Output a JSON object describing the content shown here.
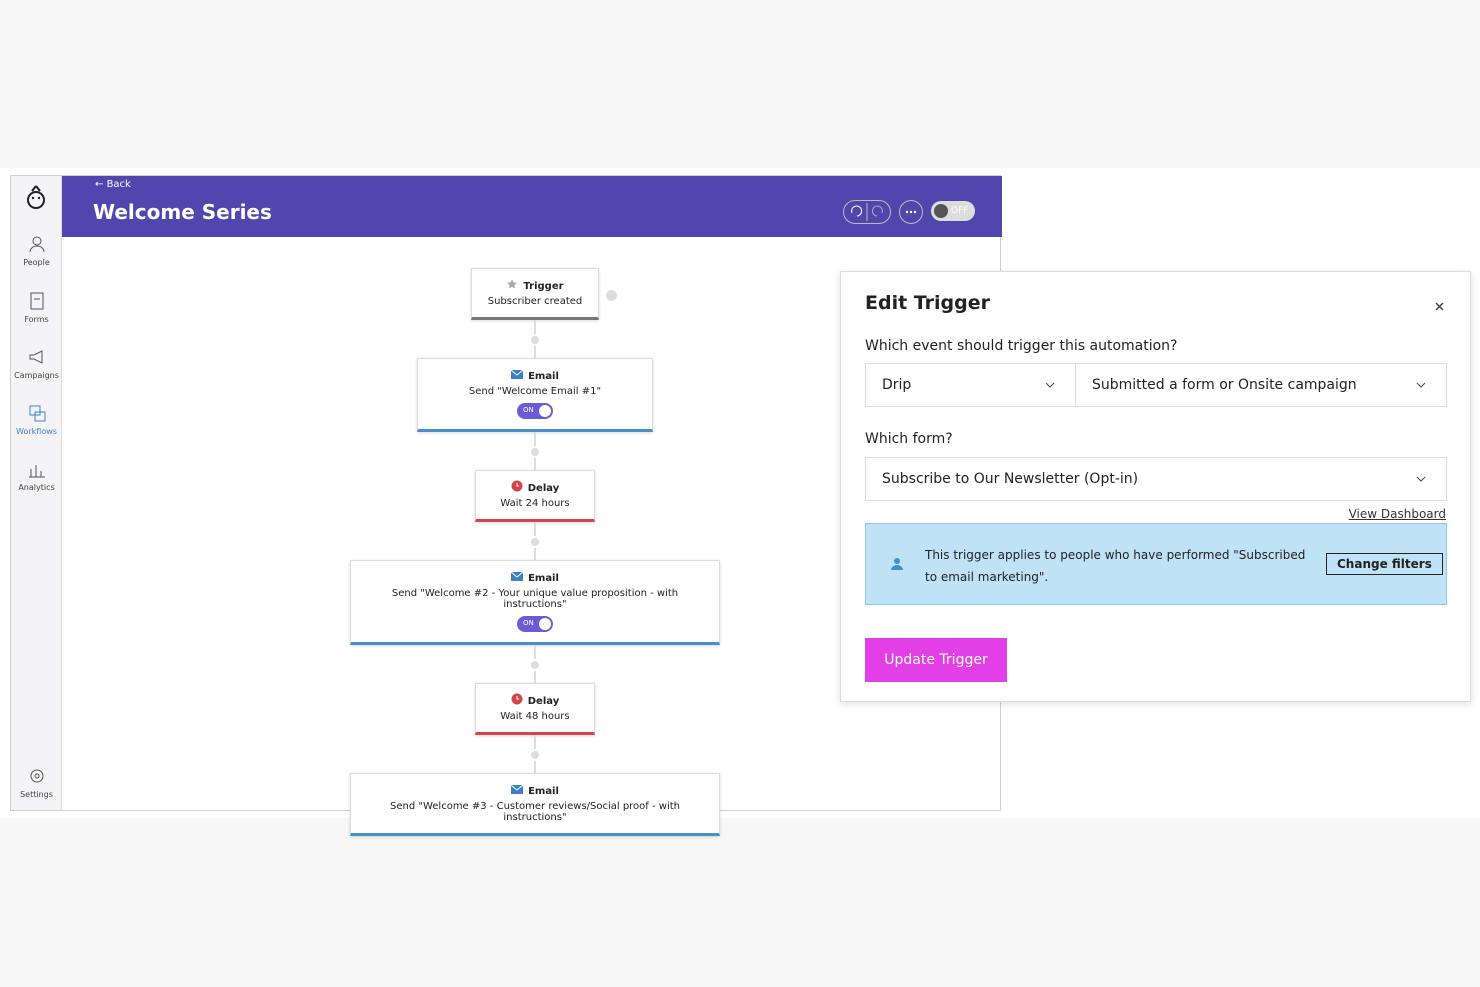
{
  "sidebar": {
    "items": [
      "People",
      "Forms",
      "Campaigns",
      "Workflows",
      "Analytics"
    ],
    "active": 3,
    "settings": "Settings"
  },
  "header": {
    "back": "Back",
    "title": "Welcome Series",
    "toggle": "OFF"
  },
  "workflow": {
    "nodes": [
      {
        "kind": "Trigger",
        "text": "Subscriber created"
      },
      {
        "kind": "Email",
        "text": "Send \"Welcome Email #1\"",
        "toggle": "ON"
      },
      {
        "kind": "Delay",
        "text": "Wait 24 hours"
      },
      {
        "kind": "Email",
        "text": "Send \"Welcome #2 - Your unique value proposition - with instructions\"",
        "toggle": "ON"
      },
      {
        "kind": "Delay",
        "text": "Wait 48 hours"
      },
      {
        "kind": "Email",
        "text": "Send \"Welcome #3 - Customer reviews/Social proof - with instructions\""
      }
    ]
  },
  "modal": {
    "title": "Edit Trigger",
    "question": "Which event should trigger this automation?",
    "event_type": "Drip",
    "event": "Submitted a form or Onsite campaign",
    "form_label": "Which form?",
    "form": "Subscribe to Our Newsletter (Opt-in)",
    "link": "View Dashboard",
    "info": "This trigger applies to people who have performed \"Subscribed to email marketing\".",
    "filter_button": "Change filters",
    "submit": "Update Trigger"
  }
}
